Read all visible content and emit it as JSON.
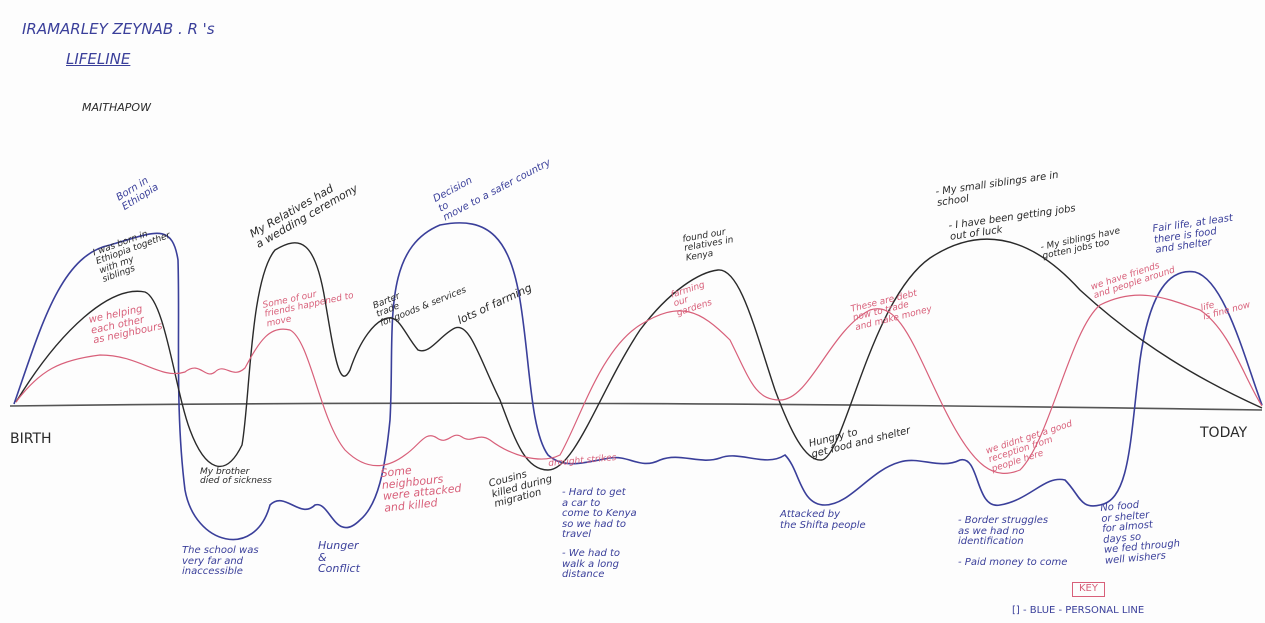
{
  "header": {
    "name": "IRAMARLEY ZEYNAB . R 's",
    "title": "LIFELINE",
    "place": "MAITHAPOW"
  },
  "axis": {
    "start": "BIRTH",
    "end": "TODAY"
  },
  "colors": {
    "personal_line": "#3a3f9a",
    "family_line": "#2a2a2a",
    "community_line": "#d8607a",
    "axis": "#555555"
  },
  "annotations": {
    "born_ethiopia": "Born in\nEthiopia",
    "born_together": "I was born in\nEthiopia together\nwith my\nsiblings",
    "helping_neighbours": "we helping\neach other\nas neighbours",
    "relatives_wedding": "My Relatives had\na wedding ceremony",
    "friends_move": "Some of our\nfriends happened to\nmove",
    "barter_trade": "Barter\ntrade\nfor goods & services",
    "decision_safer": "Decision\nto\nmove to a safer country",
    "lots_farming": "lots of farming",
    "found_relatives": "found our\nrelatives in\nKenya",
    "farming_gardens": "farming\nour\ngardens",
    "siblings_school": "- My small siblings are in\nschool",
    "have_jobs": "- I have been getting jobs\nout of luck",
    "siblings_too": "- My siblings have\ngotten jobs too",
    "fair_life": "Fair life, at least\nthere is food\nand shelter",
    "friends_people": "we have friends\nand people around",
    "life_fine": "life\nis fine now",
    "debt_trade": "These are debt\nnow to trade\nand make money",
    "brother_died": "My brother\ndied of sickness",
    "school_far": "The school was\nvery far and\ninaccessible",
    "neighbours_killed": "Some\nneighbours\nwere attacked\nand killed",
    "hunger_conflict": "Hunger\n&\nConflict",
    "cousins_killed": "Cousins\nkilled during\nmigration",
    "drought": "drought strikes",
    "hard_car": "- Hard to get\na car to\ncome to Kenya\nso we had to\ntravel",
    "walk_distance": "- We had to\nwalk a long\ndistance",
    "hungry_food": "Hungry to\nget food and shelter",
    "attacked_shifta": "Attacked by\nthe Shifta people",
    "not_good_reception": "we didnt get a good\nreception from\npeople here",
    "border_struggles": "- Border struggles\nas we had no\nidentification",
    "paid_money": "- Paid money to come",
    "no_food": "No food\nor shelter\nfor almost\ndays so\nwe fed through\nwell wishers",
    "key_label": "KEY",
    "key_blue": "[] - BLUE - PERSONAL LINE"
  }
}
